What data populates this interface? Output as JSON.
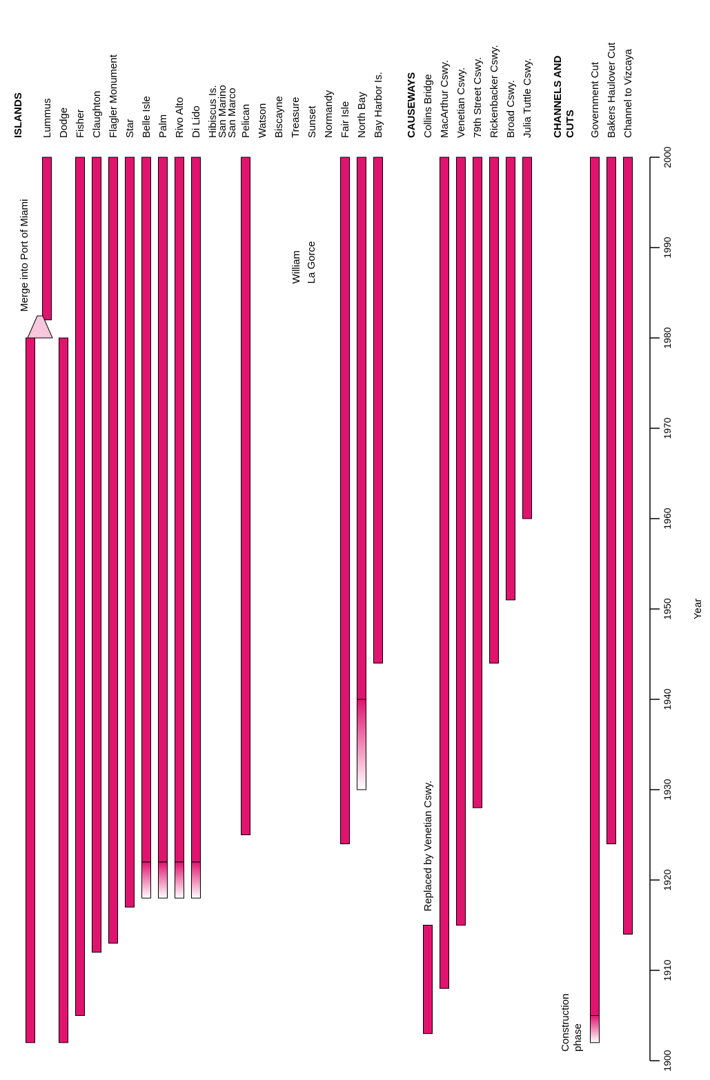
{
  "chart_data": {
    "type": "bar",
    "orientation": "rotated-timeline",
    "xlabel": "Year",
    "ylabel": "",
    "xlim": [
      1900,
      2000
    ],
    "x_ticks": [
      1900,
      1910,
      1920,
      1930,
      1940,
      1950,
      1960,
      1970,
      1980,
      1990,
      2000
    ],
    "grid": false,
    "colors": {
      "bar": "#e0146e",
      "construction": "#f7c7dc",
      "outline": "#000000"
    },
    "groups": [
      {
        "name": "ISLANDS",
        "items": [
          {
            "label": "",
            "start": 1902,
            "end": 1980
          },
          {
            "label": "Lummus",
            "start": 1982,
            "end": 2000
          },
          {
            "label": "Dodge",
            "start": 1902,
            "end": 1980
          },
          {
            "label": "Fisher",
            "start": 1905,
            "end": 2000
          },
          {
            "label": "Claughton",
            "start": 1912,
            "end": 2000
          },
          {
            "label": "Flagler Monument",
            "start": 1913,
            "end": 2000
          },
          {
            "label": "Star",
            "start": 1917,
            "end": 2000
          },
          {
            "label": "Belle Isle",
            "start": 1922,
            "end": 2000,
            "construction_start": 1918
          },
          {
            "label": "Palm",
            "start": 1922,
            "end": 2000,
            "construction_start": 1918
          },
          {
            "label": "Rivo Alto",
            "start": 1922,
            "end": 2000,
            "construction_start": 1918
          },
          {
            "label": "Di Lido",
            "start": 1922,
            "end": 2000,
            "construction_start": 1918
          },
          {
            "label": "Hibiscus Is."
          },
          {
            "label": "San Marino"
          },
          {
            "label": "San Marco"
          },
          {
            "label": "Pelican",
            "start": 1925,
            "end": 2000
          },
          {
            "label": "Watson"
          },
          {
            "label": "Biscayne"
          },
          {
            "label": "Treasure"
          },
          {
            "label": "Sunset"
          },
          {
            "label": "Normandy"
          },
          {
            "label": "Fair Isle",
            "start": 1924,
            "end": 2000
          },
          {
            "label": "North Bay",
            "start": 1940,
            "end": 2000,
            "construction_start": 1930
          },
          {
            "label": "Bay Harbor Is.",
            "start": 1944,
            "end": 2000
          }
        ]
      },
      {
        "name": "CAUSEWAYS",
        "items": [
          {
            "label": "Collins Bridge",
            "start": 1903,
            "end": 1915
          },
          {
            "label": "MacArthur Cswy.",
            "start": 1908,
            "end": 2000
          },
          {
            "label": "Venetian Cswy.",
            "start": 1915,
            "end": 2000
          },
          {
            "label": "79th Street Cswy.",
            "start": 1928,
            "end": 2000
          },
          {
            "label": "Rickenbacker Cswy.",
            "start": 1944,
            "end": 2000
          },
          {
            "label": "Broad Cswy.",
            "start": 1951,
            "end": 2000
          },
          {
            "label": "Julia Tuttle Cswy.",
            "start": 1960,
            "end": 2000
          }
        ]
      },
      {
        "name": "CHANNELS AND CUTS",
        "items": [
          {
            "label": "Government Cut",
            "start": 1905,
            "end": 2000,
            "construction_start": 1902
          },
          {
            "label": "Bakers Haulover Cut",
            "start": 1924,
            "end": 2000
          },
          {
            "label": "Channel to Vizcaya",
            "start": 1914,
            "end": 2000
          }
        ]
      }
    ],
    "annotations": {
      "merge": "Merge into Port of Miami",
      "replaced": "Replaced by Venetian Cswy.",
      "construction": [
        "Construction",
        "phase"
      ],
      "note_lines": [
        "William",
        "La Gorce"
      ]
    }
  }
}
